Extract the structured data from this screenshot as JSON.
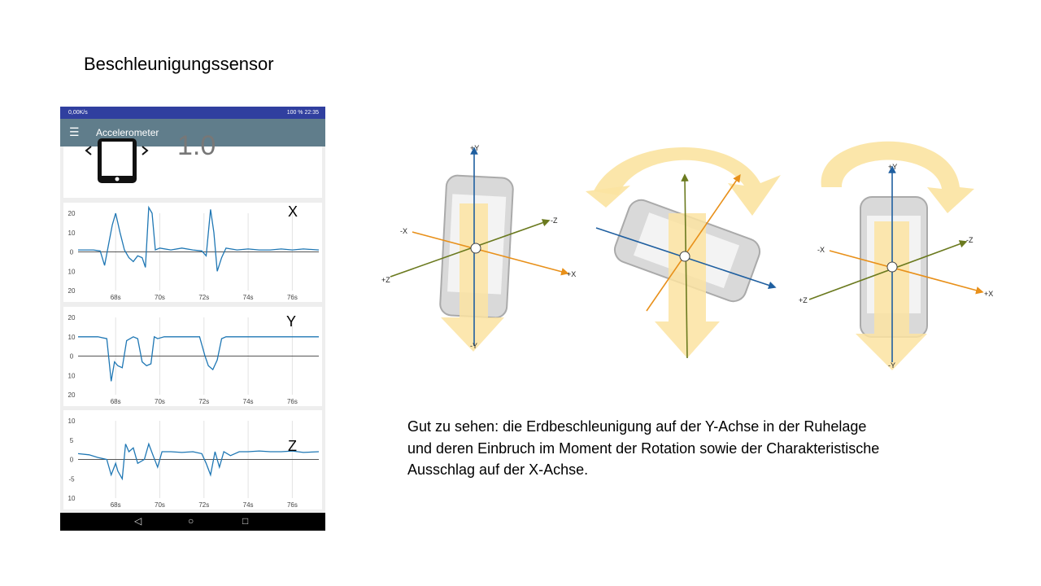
{
  "slide": {
    "title": "Beschleunigungssensor",
    "caption_lines": [
      "Gut zu sehen: die Erdbeschleunigung  auf der Y-Achse in der Ruhelage",
      "und deren Einbruch im Moment der Rotation sowie der Charakteristische",
      "Ausschlag auf der X-Achse."
    ]
  },
  "phone": {
    "status_left": "0,00K/s",
    "status_right": "100 %  22:35",
    "app_title": "Accelerometer",
    "menu_icon": "hamburger-menu-icon",
    "reading": "1.0",
    "nav_icons": [
      "back-icon",
      "home-icon",
      "recents-icon"
    ],
    "line_color": "#1f77b4"
  },
  "chart_data": [
    {
      "type": "line",
      "label": "X",
      "ylim": [
        -20,
        20
      ],
      "yticks": [
        "20",
        "10",
        "0",
        "10",
        "20"
      ],
      "xticks": [
        "68s",
        "70s",
        "72s",
        "74s",
        "76s"
      ],
      "xticks_values": [
        68,
        70,
        72,
        74,
        76
      ],
      "xlim": [
        66.3,
        77.2
      ],
      "x": [
        66.3,
        67.0,
        67.3,
        67.5,
        67.7,
        67.85,
        68.0,
        68.2,
        68.4,
        68.6,
        68.8,
        69.0,
        69.2,
        69.35,
        69.5,
        69.65,
        69.8,
        70.0,
        70.5,
        71.0,
        71.5,
        71.9,
        72.1,
        72.3,
        72.45,
        72.6,
        72.8,
        73.0,
        73.5,
        74.0,
        74.5,
        75.0,
        75.5,
        76.0,
        76.5,
        77.2
      ],
      "y": [
        1,
        1,
        0.5,
        -7,
        5,
        14,
        20,
        10,
        1,
        -3,
        -5,
        -2,
        -3,
        -8,
        23,
        20,
        1,
        2,
        1,
        2,
        1,
        0.5,
        -2,
        22,
        10,
        -10,
        -3,
        2,
        1,
        1.5,
        1,
        1,
        1.5,
        1,
        1.5,
        1
      ]
    },
    {
      "type": "line",
      "label": "Y",
      "ylim": [
        -20,
        20
      ],
      "yticks": [
        "20",
        "10",
        "0",
        "10",
        "20"
      ],
      "xticks": [
        "68s",
        "70s",
        "72s",
        "74s",
        "76s"
      ],
      "xticks_values": [
        68,
        70,
        72,
        74,
        76
      ],
      "xlim": [
        66.3,
        77.2
      ],
      "x": [
        66.3,
        67.2,
        67.6,
        67.8,
        67.95,
        68.1,
        68.3,
        68.5,
        68.8,
        69.0,
        69.2,
        69.4,
        69.6,
        69.75,
        69.9,
        70.2,
        71.0,
        71.8,
        72.05,
        72.2,
        72.4,
        72.6,
        72.8,
        73.0,
        73.5,
        74.0,
        75.0,
        76.0,
        77.2
      ],
      "y": [
        10,
        10,
        9,
        -13,
        -3,
        -5,
        -6,
        8,
        10,
        9,
        -3,
        -5,
        -4,
        10,
        9,
        10,
        10,
        10,
        0,
        -5,
        -7,
        -2,
        9,
        10,
        10,
        10,
        10,
        10,
        10
      ]
    },
    {
      "type": "line",
      "label": "Z",
      "ylim": [
        -10,
        10
      ],
      "yticks": [
        "10",
        "5",
        "0",
        "-5",
        "10"
      ],
      "xticks": [
        "68s",
        "70s",
        "72s",
        "74s",
        "76s"
      ],
      "xticks_values": [
        68,
        70,
        72,
        74,
        76
      ],
      "xlim": [
        66.3,
        77.2
      ],
      "x": [
        66.3,
        66.8,
        67.2,
        67.6,
        67.8,
        68.0,
        68.1,
        68.3,
        68.45,
        68.6,
        68.8,
        69.0,
        69.3,
        69.5,
        69.7,
        69.9,
        70.1,
        70.5,
        71.0,
        71.5,
        71.9,
        72.1,
        72.3,
        72.5,
        72.7,
        72.9,
        73.2,
        73.6,
        74.0,
        74.5,
        75.0,
        75.5,
        76.0,
        76.5,
        77.2
      ],
      "y": [
        1.5,
        1.2,
        0.5,
        0,
        -4,
        -1,
        -3,
        -5,
        4,
        2,
        3,
        -1,
        0,
        4,
        1,
        -2,
        2,
        2,
        1.8,
        2,
        1.5,
        -1,
        -4,
        2,
        -2,
        2,
        1,
        2,
        2,
        2.2,
        2,
        2,
        2.2,
        1.8,
        2
      ]
    }
  ],
  "diagram": {
    "axis_labels": {
      "plus_y": "+Y",
      "minus_y": "-Y",
      "plus_x": "+X",
      "minus_x": "-X",
      "plus_z": "+Z",
      "minus_z": "-Z"
    },
    "colors": {
      "y_axis": "#1f5fa0",
      "x_axis": "#e8901a",
      "z_axis": "#6b7a1f",
      "arrow_fill": "#fbe3a1",
      "phone_body": "#d8d8d8",
      "phone_screen": "#f4f4f4"
    }
  }
}
